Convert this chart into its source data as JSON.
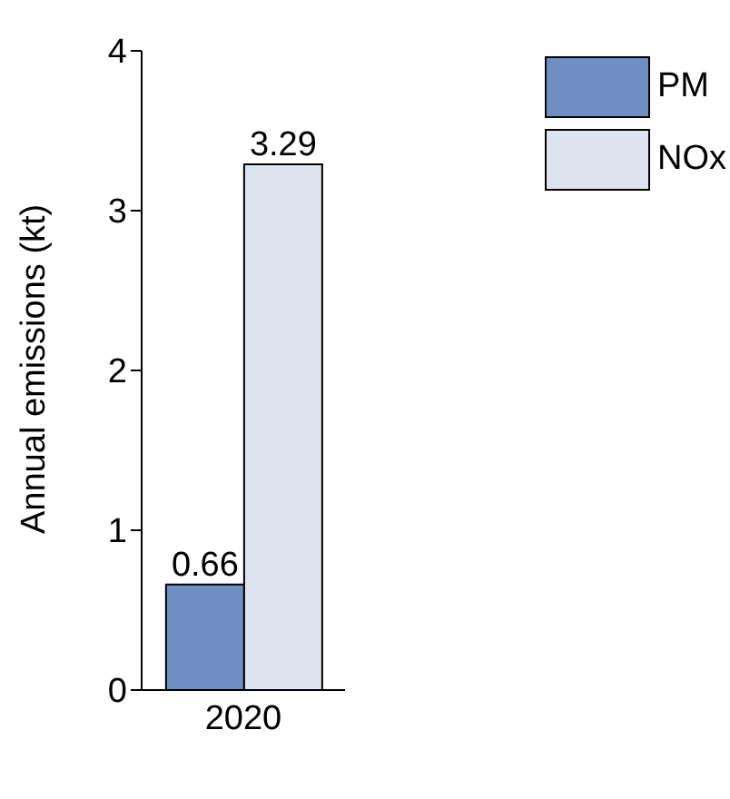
{
  "chart_data": {
    "type": "bar",
    "categories": [
      "2020"
    ],
    "ylabel": "Annual emissions (kt)",
    "series": [
      {
        "name": "PM",
        "color": "#6f8fc4",
        "values": [
          0.66
        ]
      },
      {
        "name": "NOx",
        "color": "#dde3ef",
        "values": [
          3.29
        ]
      }
    ],
    "ylim": [
      0,
      4
    ],
    "yticks": [
      0,
      1,
      2,
      3,
      4
    ],
    "grid": false,
    "legend": "top right",
    "data_labels": true
  }
}
